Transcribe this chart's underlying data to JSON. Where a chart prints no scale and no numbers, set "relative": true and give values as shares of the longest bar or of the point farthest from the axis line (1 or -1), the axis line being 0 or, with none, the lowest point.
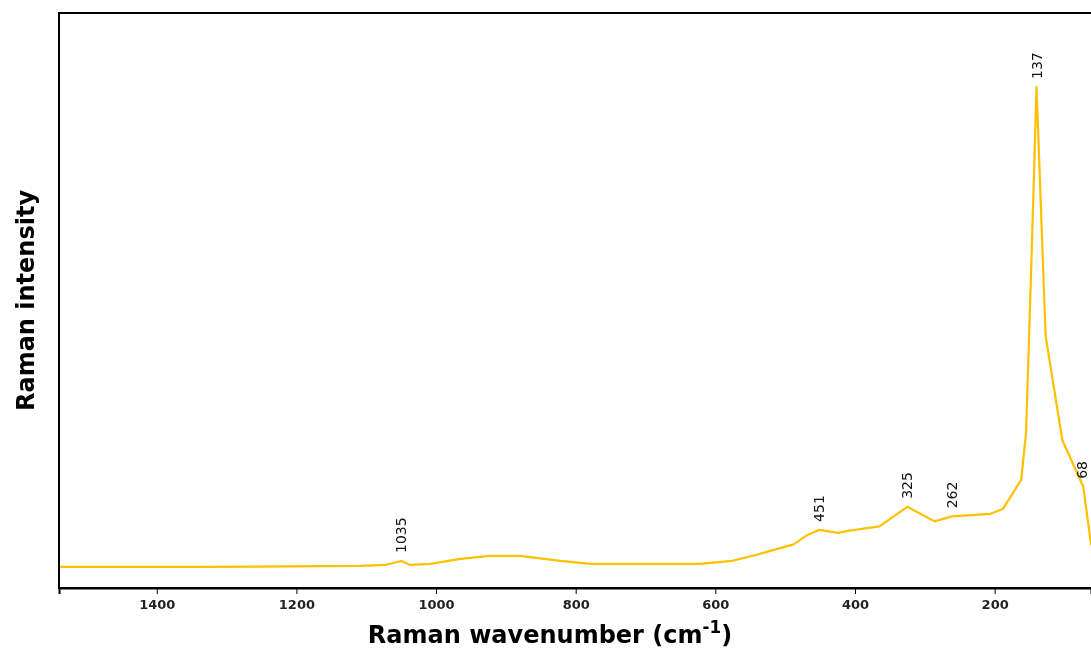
{
  "chart_data": {
    "type": "line",
    "xlabel": "Raman wavenumber (cm$^{-1}$)",
    "ylabel": "Raman intensity",
    "relative": true,
    "xlim": [
      1540,
      62
    ],
    "xticks": [
      1400,
      1200,
      1000,
      800,
      600,
      400,
      200
    ],
    "x": [
      1540,
      1338,
      1109,
      1073,
      1050,
      1037,
      1008,
      965,
      923,
      880,
      822,
      779,
      693,
      622,
      577,
      547,
      488,
      468,
      451,
      424,
      410,
      365,
      325,
      286,
      261,
      206,
      188,
      162,
      155,
      147,
      140,
      127,
      103,
      73,
      62
    ],
    "series": [
      {
        "color": "#ffc000",
        "values": [
          0.042,
          0.042,
          0.044,
          0.046,
          0.054,
          0.046,
          0.048,
          0.058,
          0.064,
          0.064,
          0.054,
          0.048,
          0.048,
          0.048,
          0.054,
          0.064,
          0.087,
          0.106,
          0.116,
          0.11,
          0.114,
          0.123,
          0.162,
          0.133,
          0.143,
          0.148,
          0.158,
          0.216,
          0.31,
          0.667,
          1,
          0.503,
          0.295,
          0.202,
          0.087
        ]
      }
    ],
    "annotations": [
      {
        "text": "1035",
        "x": 1050,
        "y": 0.054
      },
      {
        "text": "451",
        "x": 451,
        "y": 0.116
      },
      {
        "text": "325",
        "x": 325,
        "y": 0.162
      },
      {
        "text": "262",
        "x": 261,
        "y": 0.143
      },
      {
        "text": "137",
        "x": 140,
        "y": 1
      },
      {
        "text": "68",
        "x": 73,
        "y": 0.202
      }
    ],
    "grid": false,
    "marker": "none",
    "line_style": "solid"
  }
}
